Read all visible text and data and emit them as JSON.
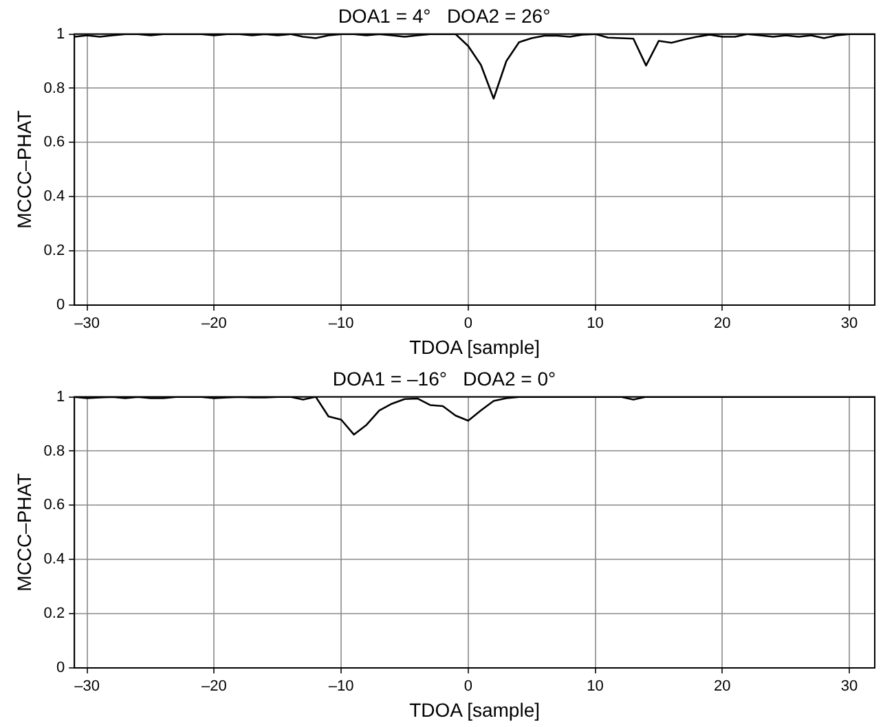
{
  "chart_data": [
    {
      "type": "line",
      "title": "DOA1 = 4°   DOA2 = 26°",
      "xlabel": "TDOA [sample]",
      "ylabel": "MCCC–PHAT",
      "xlim": [
        -31,
        32
      ],
      "xticks": [
        {
          "value": -30,
          "label": "–30"
        },
        {
          "value": -20,
          "label": "–20"
        },
        {
          "value": -10,
          "label": "–10"
        },
        0,
        10,
        20,
        30
      ],
      "ylim": [
        0,
        1
      ],
      "yticks": [
        0,
        0.2,
        0.4,
        0.6,
        0.8,
        1
      ],
      "grid": true,
      "legend": false,
      "marker": "none",
      "line_style": "solid",
      "x": [
        -31,
        -30,
        -29,
        -28,
        -27,
        -26,
        -25,
        -24,
        -23,
        -22,
        -21,
        -20,
        -19,
        -18,
        -17,
        -16,
        -15,
        -14,
        -13,
        -12,
        -11,
        -10,
        -9,
        -8,
        -7,
        -6,
        -5,
        -4,
        -3,
        -2,
        -1,
        0,
        1,
        2,
        3,
        4,
        5,
        6,
        7,
        8,
        9,
        10,
        11,
        12,
        13,
        14,
        15,
        16,
        17,
        18,
        19,
        20,
        21,
        22,
        23,
        24,
        25,
        26,
        27,
        28,
        29,
        30,
        31,
        32
      ],
      "series": [
        {
          "color": "#000000",
          "values": [
            0.99,
            0.995,
            0.99,
            0.995,
            1,
            1,
            0.995,
            1,
            1,
            1,
            1,
            0.995,
            1,
            1,
            0.995,
            1,
            0.995,
            1,
            0.99,
            0.985,
            0.995,
            1,
            1,
            0.995,
            1,
            0.995,
            0.99,
            0.995,
            1,
            1,
            1,
            0.956,
            0.886,
            0.762,
            0.9,
            0.97,
            0.985,
            0.994,
            0.994,
            0.99,
            0.998,
            1,
            0.987,
            0.985,
            0.983,
            0.884,
            0.975,
            0.968,
            0.98,
            0.99,
            0.998,
            0.99,
            0.99,
            1,
            0.995,
            0.99,
            0.995,
            0.99,
            0.995,
            0.985,
            0.995,
            1,
            1,
            1
          ]
        }
      ]
    },
    {
      "type": "line",
      "title": "DOA1 = –16°   DOA2 = 0°",
      "xlabel": "TDOA [sample]",
      "ylabel": "MCCC–PHAT",
      "xlim": [
        -31,
        32
      ],
      "xticks": [
        {
          "value": -30,
          "label": "–30"
        },
        {
          "value": -20,
          "label": "–20"
        },
        {
          "value": -10,
          "label": "–10"
        },
        0,
        10,
        20,
        30
      ],
      "ylim": [
        0,
        1
      ],
      "yticks": [
        0,
        0.2,
        0.4,
        0.6,
        0.8,
        1
      ],
      "grid": true,
      "legend": false,
      "marker": "none",
      "line_style": "solid",
      "x": [
        -31,
        -30,
        -29,
        -28,
        -27,
        -26,
        -25,
        -24,
        -23,
        -22,
        -21,
        -20,
        -19,
        -18,
        -17,
        -16,
        -15,
        -14,
        -13,
        -12,
        -11,
        -10,
        -9,
        -8,
        -7,
        -6,
        -5,
        -4,
        -3,
        -2,
        -1,
        0,
        1,
        2,
        3,
        4,
        5,
        6,
        7,
        8,
        9,
        10,
        11,
        12,
        13,
        14,
        15,
        16,
        17,
        18,
        19,
        20,
        21,
        22,
        23,
        24,
        25,
        26,
        27,
        28,
        29,
        30,
        31,
        32
      ],
      "series": [
        {
          "color": "#000000",
          "values": [
            1,
            0.995,
            0.998,
            1,
            0.995,
            1,
            0.995,
            0.995,
            1,
            1,
            1,
            0.995,
            0.998,
            1,
            0.998,
            0.998,
            1,
            1,
            0.99,
            1,
            0.928,
            0.916,
            0.861,
            0.897,
            0.95,
            0.975,
            0.992,
            0.994,
            0.97,
            0.966,
            0.931,
            0.912,
            0.95,
            0.985,
            0.995,
            1,
            1,
            1,
            1,
            1,
            1,
            1,
            1,
            1,
            0.99,
            1,
            1,
            1,
            1,
            1,
            1,
            1,
            1,
            1,
            1,
            1,
            1,
            1,
            1,
            1,
            1,
            1,
            1,
            1
          ]
        }
      ]
    }
  ]
}
